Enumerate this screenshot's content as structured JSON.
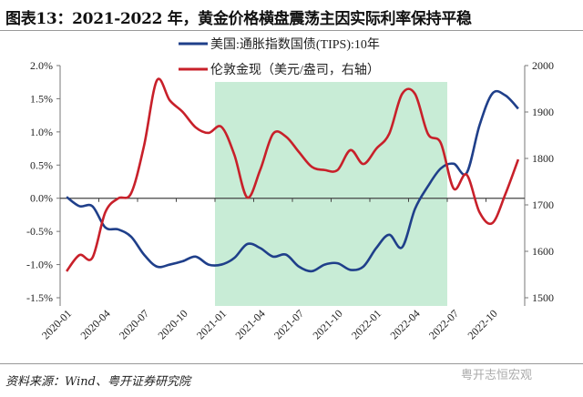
{
  "title": "图表13：2021-2022 年，黄金价格横盘震荡主因实际利率保持平稳",
  "source": "资料来源：Wind、粤开证券研究院",
  "watermark": "粤开志恒宏观",
  "chart_data": {
    "type": "line",
    "title": "图表13：2021-2022 年，黄金价格横盘震荡主因实际利率保持平稳",
    "x": [
      "2020-01",
      "2020-02",
      "2020-03",
      "2020-04",
      "2020-05",
      "2020-06",
      "2020-07",
      "2020-08",
      "2020-09",
      "2020-10",
      "2020-11",
      "2020-12",
      "2021-01",
      "2021-02",
      "2021-03",
      "2021-04",
      "2021-05",
      "2021-06",
      "2021-07",
      "2021-08",
      "2021-09",
      "2021-10",
      "2021-11",
      "2021-12",
      "2022-01",
      "2022-02",
      "2022-03",
      "2022-04",
      "2022-05",
      "2022-06",
      "2022-07",
      "2022-08",
      "2022-09",
      "2022-10",
      "2022-11",
      "2022-12"
    ],
    "x_tick_labels": [
      "2020-01",
      "2020-04",
      "2020-07",
      "2020-10",
      "2021-01",
      "2021-04",
      "2021-07",
      "2021-10",
      "2022-01",
      "2022-04",
      "2022-07",
      "2022-10"
    ],
    "left_axis": {
      "ylim": [
        -1.5,
        2.0
      ],
      "ticks": [
        "-1.5%",
        "-1.0%",
        "-0.5%",
        "0.0%",
        "0.5%",
        "1.0%",
        "1.5%",
        "2.0%"
      ]
    },
    "right_axis": {
      "ylim": [
        1500,
        2000
      ],
      "ticks": [
        "1500",
        "1600",
        "1700",
        "1800",
        "1900",
        "2000"
      ]
    },
    "series": [
      {
        "name": "美国:通胀指数国债(TIPS):10年",
        "axis": "left",
        "color": "#1f3f8a",
        "values": [
          0.02,
          -0.12,
          -0.12,
          -0.44,
          -0.47,
          -0.58,
          -0.85,
          -1.03,
          -1.0,
          -0.95,
          -0.88,
          -1.0,
          -1.0,
          -0.9,
          -0.69,
          -0.75,
          -0.88,
          -0.85,
          -1.03,
          -1.1,
          -1.0,
          -0.98,
          -1.08,
          -1.03,
          -0.75,
          -0.55,
          -0.74,
          -0.16,
          0.18,
          0.45,
          0.52,
          0.38,
          1.1,
          1.58,
          1.55,
          1.35
        ]
      },
      {
        "name": "伦敦金现（美元/盎司，右轴）",
        "axis": "right",
        "color": "#c8202a",
        "values": [
          1557,
          1592,
          1586,
          1684,
          1714,
          1725,
          1827,
          1968,
          1925,
          1900,
          1867,
          1855,
          1868,
          1808,
          1716,
          1775,
          1853,
          1847,
          1814,
          1782,
          1775,
          1775,
          1818,
          1788,
          1821,
          1853,
          1939,
          1939,
          1853,
          1833,
          1735,
          1765,
          1684,
          1661,
          1723,
          1798
        ]
      }
    ],
    "shaded_region": {
      "from": "2021-01",
      "to": "2022-06",
      "color": "#c8ecd6"
    },
    "legend": "top-center",
    "grid": false
  }
}
